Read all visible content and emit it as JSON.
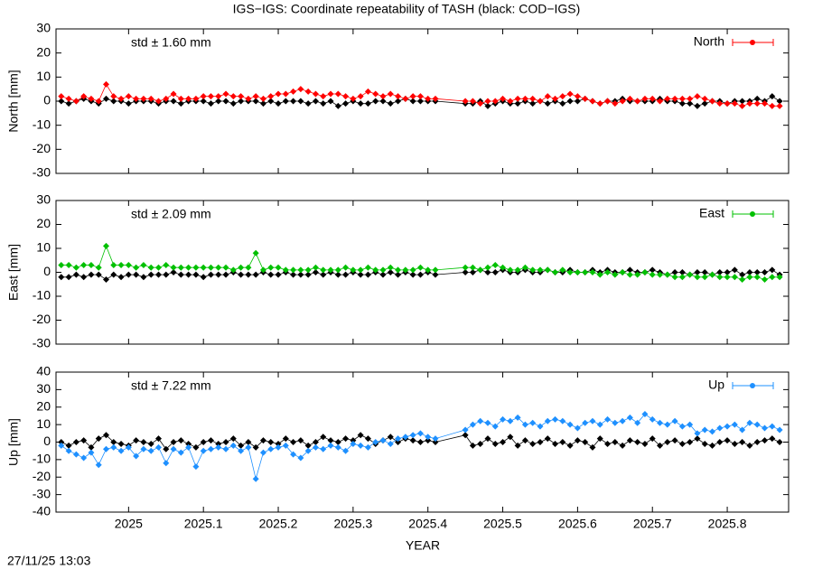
{
  "title": "IGS−IGS: Coordinate repeatability of TASH (black: COD−IGS)",
  "xlabel": "YEAR",
  "timestamp": "27/11/25 13:03",
  "chart_data": [
    {
      "type": "line",
      "ylabel": "North [mm]",
      "annotation": "std ± 1.60 mm",
      "xlim": [
        2024.903,
        2025.882
      ],
      "xticks": [
        2025,
        2025.1,
        2025.2,
        2025.3,
        2025.4,
        2025.5,
        2025.6,
        2025.7,
        2025.8
      ],
      "ylim": [
        -30,
        30
      ],
      "yticks": [
        -30,
        -20,
        -10,
        0,
        10,
        20,
        30
      ],
      "legend": "top-right",
      "x": [
        2024.91,
        2024.92,
        2024.93,
        2024.94,
        2024.95,
        2024.96,
        2024.97,
        2024.98,
        2024.99,
        2025,
        2025.01,
        2025.02,
        2025.03,
        2025.04,
        2025.05,
        2025.06,
        2025.07,
        2025.08,
        2025.09,
        2025.1,
        2025.11,
        2025.12,
        2025.13,
        2025.14,
        2025.15,
        2025.16,
        2025.17,
        2025.18,
        2025.19,
        2025.2,
        2025.21,
        2025.22,
        2025.23,
        2025.24,
        2025.25,
        2025.26,
        2025.27,
        2025.28,
        2025.29,
        2025.3,
        2025.31,
        2025.32,
        2025.33,
        2025.34,
        2025.35,
        2025.36,
        2025.37,
        2025.38,
        2025.39,
        2025.4,
        2025.41,
        2025.45,
        2025.46,
        2025.47,
        2025.48,
        2025.49,
        2025.5,
        2025.51,
        2025.52,
        2025.53,
        2025.54,
        2025.55,
        2025.56,
        2025.57,
        2025.58,
        2025.59,
        2025.6,
        2025.61,
        2025.62,
        2025.63,
        2025.64,
        2025.65,
        2025.66,
        2025.67,
        2025.68,
        2025.69,
        2025.7,
        2025.71,
        2025.72,
        2025.73,
        2025.74,
        2025.75,
        2025.76,
        2025.77,
        2025.78,
        2025.79,
        2025.8,
        2025.81,
        2025.82,
        2025.83,
        2025.84,
        2025.85,
        2025.86,
        2025.87
      ],
      "series": [
        {
          "color": "#000000",
          "values": [
            0,
            -1,
            0,
            1,
            0,
            -1,
            1,
            0,
            0,
            -1,
            0,
            0,
            0,
            -1,
            0,
            0,
            -1,
            0,
            0,
            0,
            -1,
            0,
            0,
            -1,
            0,
            0,
            0,
            -1,
            0,
            -1,
            0,
            0,
            0,
            -1,
            0,
            -1,
            0,
            -2,
            -1,
            0,
            -1,
            -1,
            0,
            0,
            -1,
            0,
            1,
            0,
            0,
            0,
            0,
            -1,
            -1,
            0,
            -2,
            -1,
            0,
            -1,
            -1,
            0,
            -1,
            0,
            -1,
            0,
            -1,
            0,
            0,
            1,
            0,
            -1,
            0,
            0,
            1,
            0,
            0,
            0,
            0,
            1,
            0,
            0,
            -1,
            -1,
            -2,
            -1,
            0,
            0,
            -1,
            0,
            0,
            0,
            1,
            0,
            2,
            0
          ]
        },
        {
          "name": "North",
          "color": "#ff0000",
          "values": [
            2,
            1,
            0,
            2,
            1,
            0,
            7,
            2,
            1,
            2,
            1,
            1,
            1,
            0,
            1,
            3,
            1,
            1,
            1,
            2,
            2,
            2,
            3,
            2,
            2,
            1,
            2,
            1,
            2,
            3,
            3,
            4,
            5,
            4,
            3,
            2,
            3,
            3,
            2,
            1,
            2,
            4,
            3,
            2,
            3,
            2,
            1,
            2,
            2,
            1,
            1,
            0,
            0,
            -1,
            0,
            0,
            1,
            0,
            1,
            1,
            1,
            0,
            2,
            1,
            2,
            3,
            2,
            1,
            0,
            -1,
            0,
            -1,
            0,
            1,
            0,
            1,
            1,
            0,
            1,
            1,
            1,
            1,
            2,
            1,
            0,
            -1,
            -1,
            -1,
            -2,
            -1,
            -1,
            -1,
            -2,
            -2
          ]
        }
      ]
    },
    {
      "type": "line",
      "ylabel": "East [mm]",
      "annotation": "std ± 2.09 mm",
      "xlim": [
        2024.903,
        2025.882
      ],
      "xticks": [
        2025,
        2025.1,
        2025.2,
        2025.3,
        2025.4,
        2025.5,
        2025.6,
        2025.7,
        2025.8
      ],
      "ylim": [
        -30,
        30
      ],
      "yticks": [
        -30,
        -20,
        -10,
        0,
        10,
        20,
        30
      ],
      "legend": "top-right",
      "x": [
        2024.91,
        2024.92,
        2024.93,
        2024.94,
        2024.95,
        2024.96,
        2024.97,
        2024.98,
        2024.99,
        2025,
        2025.01,
        2025.02,
        2025.03,
        2025.04,
        2025.05,
        2025.06,
        2025.07,
        2025.08,
        2025.09,
        2025.1,
        2025.11,
        2025.12,
        2025.13,
        2025.14,
        2025.15,
        2025.16,
        2025.17,
        2025.18,
        2025.19,
        2025.2,
        2025.21,
        2025.22,
        2025.23,
        2025.24,
        2025.25,
        2025.26,
        2025.27,
        2025.28,
        2025.29,
        2025.3,
        2025.31,
        2025.32,
        2025.33,
        2025.34,
        2025.35,
        2025.36,
        2025.37,
        2025.38,
        2025.39,
        2025.4,
        2025.41,
        2025.45,
        2025.46,
        2025.47,
        2025.48,
        2025.49,
        2025.5,
        2025.51,
        2025.52,
        2025.53,
        2025.54,
        2025.55,
        2025.56,
        2025.57,
        2025.58,
        2025.59,
        2025.6,
        2025.61,
        2025.62,
        2025.63,
        2025.64,
        2025.65,
        2025.66,
        2025.67,
        2025.68,
        2025.69,
        2025.7,
        2025.71,
        2025.72,
        2025.73,
        2025.74,
        2025.75,
        2025.76,
        2025.77,
        2025.78,
        2025.79,
        2025.8,
        2025.81,
        2025.82,
        2025.83,
        2025.84,
        2025.85,
        2025.86,
        2025.87
      ],
      "series": [
        {
          "color": "#000000",
          "values": [
            -2,
            -2,
            -1,
            -2,
            -1,
            -1,
            -3,
            -1,
            -2,
            -1,
            -1,
            -2,
            -1,
            -1,
            -1,
            0,
            -1,
            -1,
            -1,
            -2,
            -1,
            -1,
            -1,
            0,
            -1,
            -1,
            -1,
            0,
            -1,
            -1,
            0,
            -1,
            -1,
            -1,
            0,
            -1,
            0,
            -1,
            -1,
            0,
            -1,
            -1,
            0,
            -1,
            0,
            -1,
            0,
            -1,
            -1,
            0,
            -1,
            0,
            0,
            1,
            0,
            0,
            1,
            0,
            0,
            1,
            0,
            0,
            1,
            0,
            0,
            1,
            0,
            0,
            1,
            0,
            1,
            0,
            0,
            1,
            0,
            0,
            1,
            0,
            -1,
            0,
            0,
            -1,
            0,
            0,
            -1,
            0,
            0,
            1,
            -1,
            0,
            0,
            0,
            1,
            -1
          ]
        },
        {
          "name": "East",
          "color": "#00c000",
          "values": [
            3,
            3,
            2,
            3,
            3,
            2,
            11,
            3,
            3,
            3,
            2,
            3,
            2,
            2,
            3,
            2,
            2,
            2,
            2,
            2,
            2,
            2,
            2,
            1,
            2,
            2,
            8,
            1,
            2,
            2,
            1,
            1,
            1,
            1,
            2,
            1,
            1,
            1,
            2,
            1,
            1,
            2,
            1,
            1,
            2,
            1,
            1,
            1,
            2,
            1,
            1,
            2,
            2,
            1,
            2,
            3,
            2,
            1,
            1,
            2,
            1,
            1,
            1,
            0,
            1,
            0,
            0,
            0,
            0,
            -1,
            0,
            -1,
            0,
            -1,
            -1,
            0,
            -1,
            -1,
            -1,
            -2,
            -2,
            -1,
            -2,
            -2,
            -1,
            -2,
            -2,
            -2,
            -3,
            -2,
            -2,
            -3,
            -2,
            -2
          ]
        }
      ]
    },
    {
      "type": "line",
      "ylabel": "Up [mm]",
      "annotation": "std ± 7.22 mm",
      "xlim": [
        2024.903,
        2025.882
      ],
      "xticks": [
        2025,
        2025.1,
        2025.2,
        2025.3,
        2025.4,
        2025.5,
        2025.6,
        2025.7,
        2025.8
      ],
      "ylim": [
        -40,
        40
      ],
      "yticks": [
        -40,
        -30,
        -20,
        -10,
        0,
        10,
        20,
        30,
        40
      ],
      "legend": "top-right",
      "x": [
        2024.91,
        2024.92,
        2024.93,
        2024.94,
        2024.95,
        2024.96,
        2024.97,
        2024.98,
        2024.99,
        2025,
        2025.01,
        2025.02,
        2025.03,
        2025.04,
        2025.05,
        2025.06,
        2025.07,
        2025.08,
        2025.09,
        2025.1,
        2025.11,
        2025.12,
        2025.13,
        2025.14,
        2025.15,
        2025.16,
        2025.17,
        2025.18,
        2025.19,
        2025.2,
        2025.21,
        2025.22,
        2025.23,
        2025.24,
        2025.25,
        2025.26,
        2025.27,
        2025.28,
        2025.29,
        2025.3,
        2025.31,
        2025.32,
        2025.33,
        2025.34,
        2025.35,
        2025.36,
        2025.37,
        2025.38,
        2025.39,
        2025.4,
        2025.41,
        2025.45,
        2025.46,
        2025.47,
        2025.48,
        2025.49,
        2025.5,
        2025.51,
        2025.52,
        2025.53,
        2025.54,
        2025.55,
        2025.56,
        2025.57,
        2025.58,
        2025.59,
        2025.6,
        2025.61,
        2025.62,
        2025.63,
        2025.64,
        2025.65,
        2025.66,
        2025.67,
        2025.68,
        2025.69,
        2025.7,
        2025.71,
        2025.72,
        2025.73,
        2025.74,
        2025.75,
        2025.76,
        2025.77,
        2025.78,
        2025.79,
        2025.8,
        2025.81,
        2025.82,
        2025.83,
        2025.84,
        2025.85,
        2025.86,
        2025.87
      ],
      "series": [
        {
          "color": "#000000",
          "values": [
            0,
            -2,
            0,
            1,
            -3,
            2,
            4,
            0,
            -1,
            -2,
            1,
            0,
            -1,
            2,
            -4,
            0,
            1,
            -1,
            -3,
            0,
            1,
            -1,
            0,
            2,
            -2,
            0,
            -3,
            1,
            0,
            -1,
            2,
            0,
            1,
            -2,
            0,
            3,
            1,
            0,
            2,
            1,
            4,
            2,
            -1,
            1,
            3,
            0,
            2,
            1,
            0,
            1,
            0,
            4,
            -2,
            -1,
            2,
            -1,
            0,
            3,
            -2,
            1,
            -1,
            0,
            2,
            -1,
            0,
            -2,
            1,
            0,
            -3,
            2,
            -1,
            0,
            -2,
            1,
            0,
            -1,
            2,
            -2,
            0,
            1,
            -1,
            0,
            2,
            -1,
            -2,
            0,
            1,
            -1,
            0,
            -2,
            0,
            1,
            2,
            0
          ]
        },
        {
          "name": "Up",
          "color": "#1e90ff",
          "values": [
            -2,
            -5,
            -7,
            -9,
            -6,
            -13,
            -4,
            -3,
            -5,
            -3,
            -8,
            -4,
            -5,
            -3,
            -12,
            -4,
            -6,
            -3,
            -14,
            -5,
            -4,
            -3,
            -4,
            -2,
            -5,
            -3,
            -21,
            -6,
            -4,
            -3,
            -2,
            -7,
            -9,
            -5,
            -3,
            -4,
            -2,
            -3,
            -5,
            -1,
            -2,
            -3,
            0,
            1,
            -1,
            2,
            3,
            4,
            5,
            3,
            2,
            7,
            10,
            12,
            11,
            9,
            13,
            12,
            14,
            10,
            11,
            9,
            12,
            13,
            12,
            10,
            8,
            11,
            12,
            10,
            13,
            11,
            12,
            14,
            11,
            16,
            13,
            11,
            10,
            12,
            9,
            10,
            5,
            7,
            6,
            8,
            9,
            10,
            7,
            11,
            10,
            8,
            9,
            7
          ]
        }
      ]
    }
  ]
}
